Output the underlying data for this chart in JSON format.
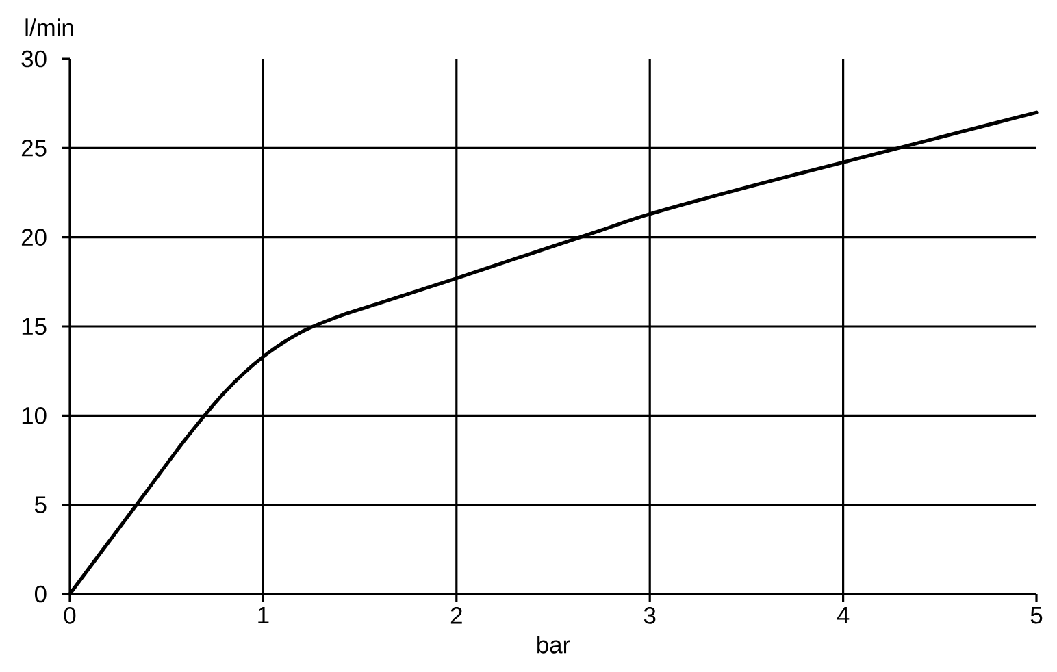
{
  "chart_data": {
    "type": "line",
    "xlabel": "bar",
    "ylabel": "l/min",
    "x": [
      0,
      0.2,
      0.4,
      0.6,
      0.8,
      1,
      1.2,
      1.4,
      1.6,
      1.8,
      2,
      2.25,
      2.5,
      2.75,
      3,
      3.5,
      4,
      4.5,
      5
    ],
    "values": [
      0,
      2.9,
      5.8,
      8.7,
      11.3,
      13.3,
      14.7,
      15.6,
      16.3,
      17,
      17.7,
      18.6,
      19.5,
      20.4,
      21.3,
      22.8,
      24.2,
      25.6,
      27
    ],
    "color": "#000000",
    "line_style": "solid",
    "xlim": [
      0,
      5
    ],
    "ylim": [
      0,
      30
    ],
    "xticks": [
      0,
      1,
      2,
      3,
      4,
      5
    ],
    "yticks": [
      0,
      5,
      10,
      15,
      20,
      25,
      30
    ],
    "grid": true
  }
}
